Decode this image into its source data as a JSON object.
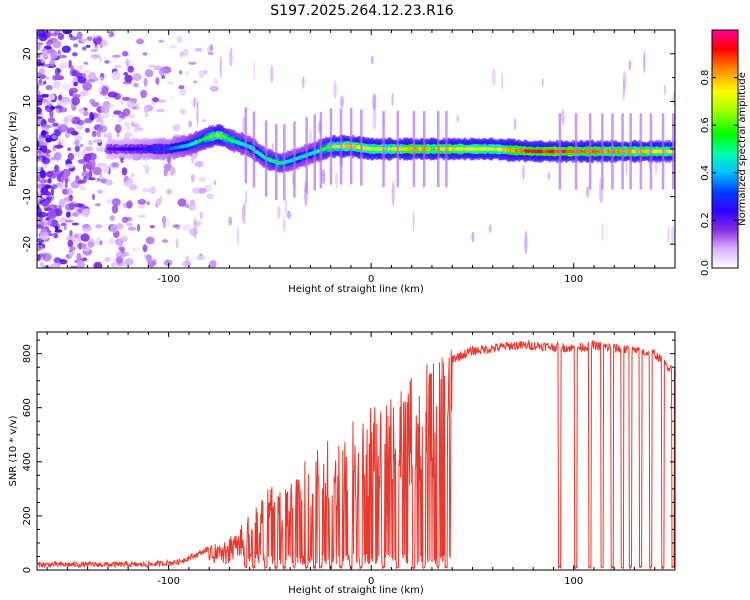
{
  "title": "S197.2025.264.12.23.R16",
  "chart_data": [
    {
      "type": "heatmap",
      "name": "spectrogram",
      "xlabel": "Height of straight line (km)",
      "ylabel": "Frequency (Hz)",
      "xlim": [
        -165,
        150
      ],
      "ylim": [
        -25,
        25
      ],
      "xticks": [
        -100,
        0,
        100
      ],
      "xtick_labels": [
        "-100",
        "0",
        "100"
      ],
      "yticks": [
        -20,
        -10,
        0,
        10,
        20
      ],
      "ytick_labels": [
        "-20",
        "-10",
        "0",
        "10",
        "20"
      ],
      "colorbar": {
        "label": "Normalized spectral amplitude",
        "range": [
          0,
          1
        ],
        "ticks": [
          0,
          0.2,
          0.4,
          0.6,
          0.8
        ],
        "tick_labels": [
          "0.0",
          "0.2",
          "0.4",
          "0.6",
          "0.8"
        ]
      },
      "ridge": {
        "x": [
          -165,
          -120,
          -100,
          -90,
          -80,
          -75,
          -70,
          -60,
          -52,
          -45,
          -40,
          -30,
          -20,
          -10,
          0,
          20,
          40,
          60,
          80,
          100,
          120,
          140,
          150
        ],
        "y": [
          0,
          0,
          0,
          0.8,
          2.5,
          3,
          2,
          0.5,
          -2,
          -3,
          -2.5,
          -1,
          0.5,
          0.6,
          0,
          0,
          0,
          0,
          -0.5,
          -0.5,
          -0.5,
          -0.5,
          -0.5
        ],
        "amplitude": [
          0.15,
          0.25,
          0.35,
          0.45,
          0.6,
          0.7,
          0.55,
          0.45,
          0.5,
          0.55,
          0.45,
          0.45,
          0.65,
          0.85,
          0.7,
          0.85,
          0.8,
          0.75,
          0.95,
          0.9,
          0.85,
          0.8,
          0.75
        ]
      }
    },
    {
      "type": "line",
      "name": "snr",
      "xlabel": "Height of straight line (km)",
      "ylabel": "SNR (10 * v/v)",
      "xlim": [
        -165,
        150
      ],
      "ylim": [
        0,
        880
      ],
      "xticks": [
        -100,
        0,
        100
      ],
      "xtick_labels": [
        "-100",
        "0",
        "100"
      ],
      "yticks": [
        0,
        200,
        400,
        600,
        800
      ],
      "ytick_labels": [
        "0",
        "200",
        "400",
        "600",
        "800"
      ],
      "color": "#e8392f",
      "series_envelope": {
        "x": [
          -165,
          -110,
          -95,
          -85,
          -75,
          -65,
          -55,
          -50,
          -40,
          -30,
          -20,
          -10,
          0,
          10,
          20,
          30,
          40,
          50,
          60,
          70,
          80,
          90,
          100,
          110,
          120,
          130,
          140,
          145,
          150
        ],
        "y": [
          20,
          20,
          30,
          60,
          100,
          150,
          250,
          330,
          300,
          420,
          480,
          520,
          580,
          640,
          680,
          740,
          780,
          810,
          820,
          830,
          830,
          825,
          820,
          830,
          820,
          810,
          800,
          760,
          740
        ]
      },
      "dropouts": [
        -62,
        -58,
        -52,
        -47,
        -43,
        -38,
        -32,
        -28,
        -25,
        -20,
        -15,
        -10,
        -5,
        6,
        13,
        21,
        26,
        33,
        37,
        93,
        101,
        108,
        114,
        119,
        124,
        128,
        133,
        138,
        144,
        149
      ]
    }
  ]
}
